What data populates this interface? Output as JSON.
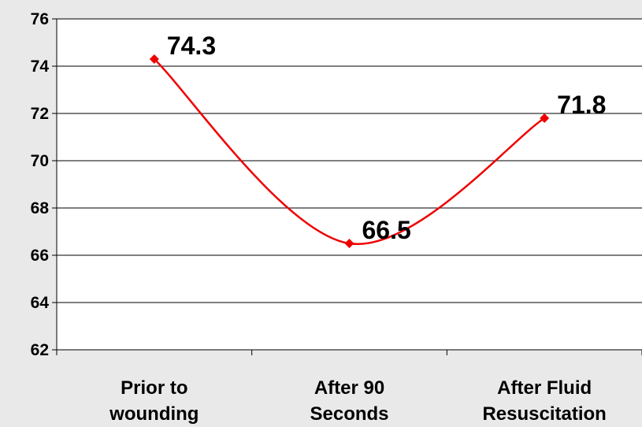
{
  "chart_data": {
    "type": "line",
    "categories": [
      [
        "Prior to",
        "wounding"
      ],
      [
        "After 90",
        "Seconds"
      ],
      [
        "After Fluid",
        "Resuscitation"
      ]
    ],
    "series": [
      {
        "values": [
          74.3,
          66.5,
          71.8
        ],
        "color": "#ee0000"
      }
    ],
    "data_labels": [
      "74.3",
      "66.5",
      "71.8"
    ],
    "ylim": [
      62,
      76
    ],
    "yticks": [
      62,
      64,
      66,
      68,
      70,
      72,
      74,
      76
    ],
    "smooth": true,
    "grid": "horizontal",
    "legend": "none"
  }
}
